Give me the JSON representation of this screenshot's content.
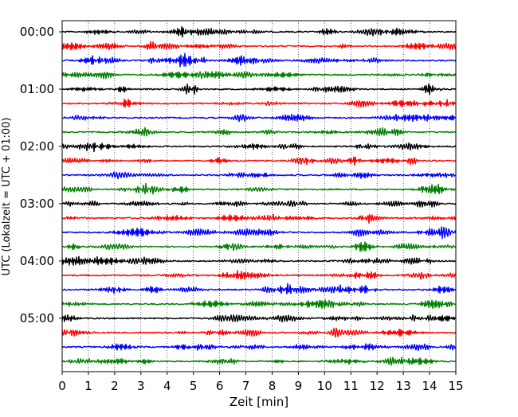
{
  "chart_data": {
    "type": "line",
    "title": "",
    "xlabel": "Zeit  [min]",
    "ylabel": "UTC (Lokalzeit = UTC + 01:00)",
    "xlim": [
      0,
      15
    ],
    "x_ticks": [
      "0",
      "1",
      "2",
      "3",
      "4",
      "5",
      "6",
      "7",
      "8",
      "9",
      "10",
      "11",
      "12",
      "13",
      "14",
      "15"
    ],
    "y_ticks": [
      "00:00",
      "01:00",
      "02:00",
      "03:00",
      "04:00",
      "05:00"
    ],
    "grid": "vertical dotted",
    "legend": "none",
    "trace_count": 24,
    "trace_interval_min": 15,
    "trace_colors": [
      "#000000",
      "#ff0000",
      "#0000ff",
      "#007f00"
    ]
  }
}
